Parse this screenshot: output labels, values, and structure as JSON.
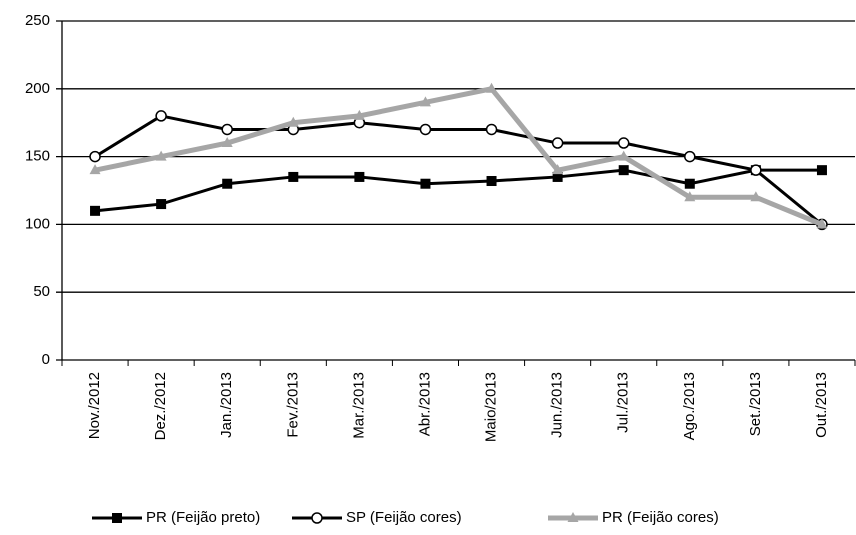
{
  "chart_data": {
    "type": "line",
    "categories": [
      "Nov./2012",
      "Dez./2012",
      "Jan./2013",
      "Fev./2013",
      "Mar./2013",
      "Abr./2013",
      "Maio/2013",
      "Jun./2013",
      "Jul./2013",
      "Ago./2013",
      "Set./2013",
      "Out./2013"
    ],
    "series": [
      {
        "name": "PR (Feijão preto)",
        "color": "#000000",
        "marker": "square",
        "values": [
          110,
          115,
          130,
          135,
          135,
          130,
          132,
          135,
          140,
          130,
          140,
          140
        ]
      },
      {
        "name": "SP (Feijão cores)",
        "color": "#000000",
        "marker": "circle",
        "values": [
          150,
          180,
          170,
          170,
          175,
          170,
          170,
          160,
          160,
          150,
          140,
          100
        ]
      },
      {
        "name": "PR (Feijão cores)",
        "color": "#a6a6a6",
        "marker": "triangle",
        "values": [
          140,
          150,
          160,
          175,
          180,
          190,
          200,
          140,
          150,
          120,
          120,
          100
        ]
      }
    ],
    "ylim": [
      0,
      250
    ],
    "yticks": [
      0,
      50,
      100,
      150,
      200,
      250
    ],
    "grid": true,
    "legend": "bottom"
  }
}
